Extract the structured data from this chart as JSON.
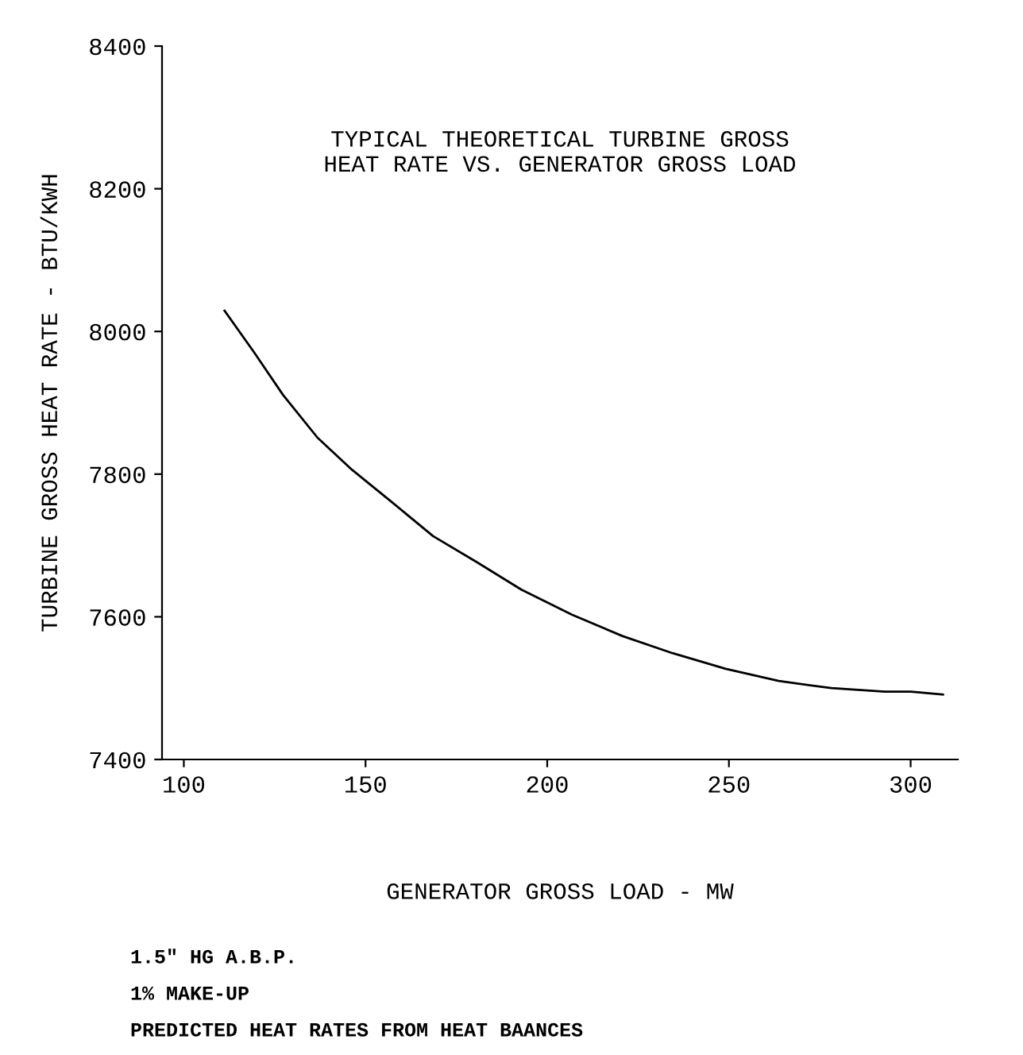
{
  "chart_data": {
    "type": "line",
    "title": "TYPICAL THEORETICAL TURBINE GROSS\nHEAT RATE VS. GENERATOR GROSS LOAD",
    "xlabel": "GENERATOR GROSS LOAD - MW",
    "ylabel": "TURBINE GROSS HEAT RATE - BTU/KWH",
    "x": [
      111.2,
      119.3,
      127.3,
      136.8,
      146.3,
      157.2,
      168.6,
      180.5,
      192.9,
      206.8,
      220.7,
      234.5,
      249.1,
      263.7,
      278.2,
      292.9,
      300.1,
      308.9
    ],
    "series": [
      {
        "color": "#000000",
        "values": [
          8029,
          7971,
          7911,
          7851,
          7806,
          7761,
          7713,
          7677,
          7638,
          7603,
          7573,
          7549,
          7527,
          7510,
          7500,
          7495,
          7495,
          7491
        ]
      }
    ],
    "xlim": [
      94,
      313
    ],
    "ylim": [
      7400,
      8400
    ],
    "xticks": [
      100,
      150,
      200,
      250,
      300
    ],
    "yticks": [
      7400,
      7600,
      7800,
      8000,
      8200,
      8400
    ],
    "grid": false,
    "legend": false,
    "marker": "none",
    "line_style": "solid",
    "annotations": [
      "1.5\" HG A.B.P.",
      "1% MAKE-UP",
      "PREDICTED HEAT RATES FROM HEAT BAANCES"
    ]
  }
}
